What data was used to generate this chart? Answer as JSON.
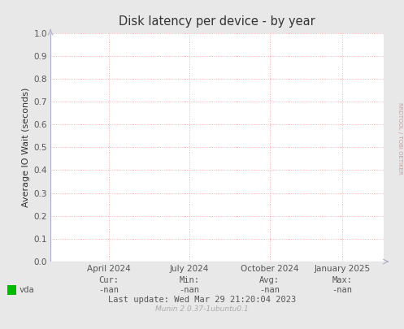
{
  "title": "Disk latency per device - by year",
  "ylabel": "Average IO Wait (seconds)",
  "ylim": [
    0.0,
    1.0
  ],
  "yticks": [
    0.0,
    0.1,
    0.2,
    0.3,
    0.4,
    0.5,
    0.6,
    0.7,
    0.8,
    0.9,
    1.0
  ],
  "xtick_labels": [
    "April 2024",
    "July 2024",
    "October 2024",
    "January 2025"
  ],
  "xtick_positions": [
    0.175,
    0.416,
    0.657,
    0.875
  ],
  "background_color": "#e8e8e8",
  "plot_bg_color": "#ffffff",
  "grid_color": "#ff9999",
  "axis_color": "#aaaacc",
  "title_color": "#333333",
  "label_color": "#333333",
  "tick_color": "#555555",
  "legend_label": "vda",
  "legend_color": "#00bb00",
  "cur_val": "-nan",
  "min_val": "-nan",
  "avg_val": "-nan",
  "max_val": "-nan",
  "last_update": "Last update: Wed Mar 29 21:20:04 2023",
  "munin_text": "Munin 2.0.37-1ubuntu0.1",
  "rrdtool_text": "RRDTOOL / TOBI OETIKER",
  "footer_label_color": "#555555",
  "munin_text_color": "#aaaaaa"
}
